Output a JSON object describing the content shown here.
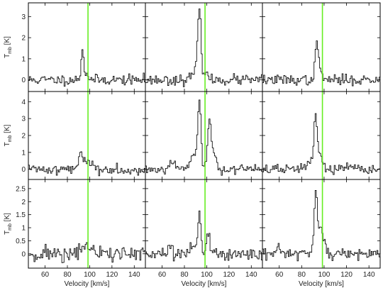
{
  "chart_data": {
    "type": "line",
    "layout": "3x3 grid of spectra",
    "xlabel": "Velocity [km/s]",
    "ylabel_main": "T",
    "ylabel_sub": "mb",
    "ylabel_unit": "[K]",
    "xlim": [
      45,
      150
    ],
    "xticks": [
      60,
      80,
      100,
      120,
      140
    ],
    "reference_velocity": 98.5,
    "reference_line_color": "#66ee22",
    "rows": [
      {
        "ylim": [
          -0.55,
          3.65
        ],
        "yticks": [
          0,
          1,
          2,
          3
        ]
      },
      {
        "ylim": [
          -0.6,
          4.6
        ],
        "yticks": [
          0,
          1,
          2,
          3,
          4
        ]
      },
      {
        "ylim": [
          -0.55,
          2.85
        ],
        "yticks": [
          0,
          0.5,
          1,
          1.5,
          2,
          2.5
        ]
      }
    ],
    "panels": [
      {
        "row": 0,
        "col": 0,
        "peaks": [
          {
            "v": 93,
            "a": 1.45,
            "w": 1.2
          },
          {
            "v": 97,
            "a": 0.3,
            "w": 1.5
          }
        ],
        "noise": 0.12,
        "seed": 11
      },
      {
        "row": 0,
        "col": 1,
        "peaks": [
          {
            "v": 93,
            "a": 3.15,
            "w": 1.4
          },
          {
            "v": 90,
            "a": 0.45,
            "w": 3.0
          },
          {
            "v": 98,
            "a": 0.35,
            "w": 2.0
          }
        ],
        "noise": 0.12,
        "seed": 23
      },
      {
        "row": 0,
        "col": 2,
        "peaks": [
          {
            "v": 93,
            "a": 1.6,
            "w": 1.4
          },
          {
            "v": 96,
            "a": 0.4,
            "w": 2.0
          }
        ],
        "noise": 0.12,
        "seed": 37
      },
      {
        "row": 1,
        "col": 0,
        "peaks": [
          {
            "v": 91,
            "a": 0.95,
            "w": 1.5
          },
          {
            "v": 95,
            "a": 0.6,
            "w": 1.8
          },
          {
            "v": 101,
            "a": 0.4,
            "w": 2.2
          }
        ],
        "noise": 0.15,
        "seed": 41
      },
      {
        "row": 1,
        "col": 1,
        "peaks": [
          {
            "v": 93,
            "a": 3.9,
            "w": 1.4
          },
          {
            "v": 88,
            "a": 1.0,
            "w": 2.8
          },
          {
            "v": 102,
            "a": 2.7,
            "w": 1.6
          },
          {
            "v": 106,
            "a": 0.8,
            "w": 2.5
          },
          {
            "v": 70,
            "a": 0.4,
            "w": 4.0
          }
        ],
        "noise": 0.14,
        "seed": 53
      },
      {
        "row": 1,
        "col": 2,
        "peaks": [
          {
            "v": 92,
            "a": 3.2,
            "w": 1.4
          },
          {
            "v": 96,
            "a": 0.9,
            "w": 2.0
          },
          {
            "v": 86,
            "a": 0.5,
            "w": 2.5
          }
        ],
        "noise": 0.15,
        "seed": 67
      },
      {
        "row": 2,
        "col": 0,
        "peaks": [
          {
            "v": 95,
            "a": 0.45,
            "w": 1.8
          },
          {
            "v": 100,
            "a": 0.2,
            "w": 2.0
          }
        ],
        "noise": 0.16,
        "seed": 71
      },
      {
        "row": 2,
        "col": 1,
        "peaks": [
          {
            "v": 93,
            "a": 1.45,
            "w": 1.4
          },
          {
            "v": 101,
            "a": 0.85,
            "w": 1.6
          },
          {
            "v": 88,
            "a": 0.3,
            "w": 3.0
          }
        ],
        "noise": 0.13,
        "seed": 83
      },
      {
        "row": 2,
        "col": 2,
        "peaks": [
          {
            "v": 92,
            "a": 2.25,
            "w": 1.3
          },
          {
            "v": 96,
            "a": 0.9,
            "w": 1.8
          },
          {
            "v": 99,
            "a": 0.35,
            "w": 2.0
          }
        ],
        "noise": 0.13,
        "seed": 97
      }
    ]
  }
}
